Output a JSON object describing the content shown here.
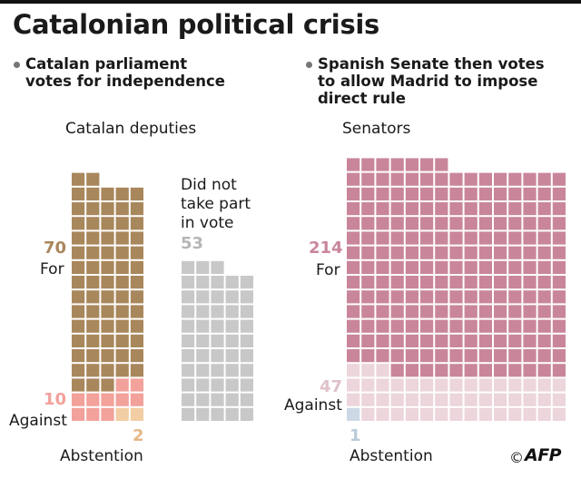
{
  "title": "Catalonian political crisis",
  "left_heading_line1": "Catalan parliament",
  "left_heading_line2": "votes for independence",
  "right_heading_line1": "Spanish Senate then votes",
  "right_heading_line2": "to allow Madrid to impose",
  "right_heading_line3": "direct rule",
  "credit_symbol": "©",
  "credit_logo": "AFP",
  "colors": {
    "deputies_for": "#a9875c",
    "deputies_against": "#f2a19b",
    "deputies_abstention": "#f3cda3",
    "deputies_absent": "#c8c8c8",
    "senators_for": "#c9869a",
    "senators_against": "#ecd5db",
    "senators_abstention": "#ccd9e4"
  },
  "chart_data": [
    {
      "type": "waffle",
      "title": "Catalan deputies",
      "groups": [
        {
          "name": "For",
          "value": 70,
          "number_label": "70",
          "text_label": "For",
          "color": "#a9875c"
        },
        {
          "name": "Against",
          "value": 10,
          "number_label": "10",
          "text_label": "Against",
          "color": "#f2a19b"
        },
        {
          "name": "Abstention",
          "value": 2,
          "number_label": "2",
          "text_label": "Abstention",
          "color": "#f3cda3"
        },
        {
          "name": "Did not take part in vote",
          "value": 53,
          "number_label": "53",
          "text_label_lines": [
            "Did not",
            "take part",
            "in vote"
          ],
          "color": "#c8c8c8"
        }
      ]
    },
    {
      "type": "waffle",
      "title": "Senators",
      "groups": [
        {
          "name": "For",
          "value": 214,
          "number_label": "214",
          "text_label": "For",
          "color": "#c9869a"
        },
        {
          "name": "Against",
          "value": 47,
          "number_label": "47",
          "text_label": "Against",
          "color": "#ecd5db"
        },
        {
          "name": "Abstention",
          "value": 1,
          "number_label": "1",
          "text_label": "Abstention",
          "color": "#ccd9e4"
        }
      ]
    }
  ]
}
